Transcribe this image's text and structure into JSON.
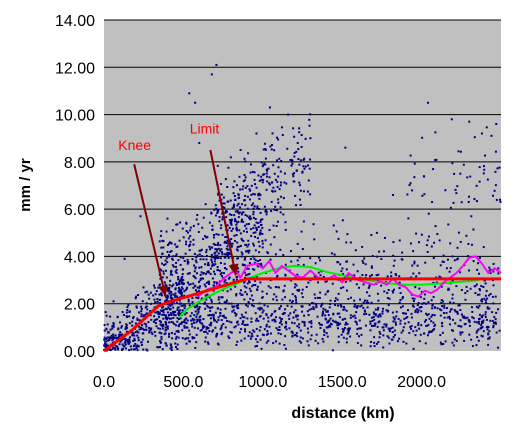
{
  "chart_data": {
    "type": "scatter",
    "title": "",
    "xlabel": "distance (km)",
    "ylabel": "mm / yr",
    "xlim": [
      0,
      2500
    ],
    "ylim": [
      0,
      14
    ],
    "xticks": [
      0,
      500,
      1000,
      1500,
      2000
    ],
    "xtick_labels": [
      "0.0",
      "500.0",
      "1000.0",
      "1500.0",
      "2000.0"
    ],
    "yticks": [
      0,
      2,
      4,
      6,
      8,
      10,
      12,
      14
    ],
    "ytick_labels": [
      "0.00",
      "2.00",
      "4.00",
      "6.00",
      "8.00",
      "10.00",
      "12.00",
      "14.00"
    ],
    "grid": "horizontal",
    "plot_background": "#c0c0c0",
    "series": [
      {
        "kind": "scatter",
        "color": "#000080",
        "clusters": [
          {
            "x_range": [
              0,
              500
            ],
            "y_trend": [
              0,
              2.2
            ],
            "spread": 1.8,
            "count": 420
          },
          {
            "x_range": [
              350,
              1000
            ],
            "y_trend": [
              2.0,
              4.5
            ],
            "spread": 3.5,
            "count": 700
          },
          {
            "x_range": [
              700,
              1300
            ],
            "y_trend": [
              5.5,
              8.0
            ],
            "spread": 2.5,
            "count": 260
          },
          {
            "x_range": [
              500,
              2500
            ],
            "y_trend": [
              1.2,
              1.2
            ],
            "spread": 1.2,
            "count": 650
          },
          {
            "x_range": [
              1000,
              2500
            ],
            "y_trend": [
              3.0,
              3.0
            ],
            "spread": 2.6,
            "count": 420
          },
          {
            "x_range": [
              1900,
              2500
            ],
            "y_trend": [
              7.0,
              7.0
            ],
            "spread": 2.5,
            "count": 60
          }
        ],
        "points": [
          [
            708,
            12.1
          ],
          [
            679,
            11.7
          ],
          [
            537,
            10.9
          ],
          [
            574,
            10.5
          ],
          [
            1045,
            10.3
          ],
          [
            2040,
            10.5
          ],
          [
            2300,
            9.7
          ],
          [
            2470,
            9.6
          ],
          [
            2380,
            9.2
          ],
          [
            1300,
            9.0
          ],
          [
            1220,
            8.8
          ],
          [
            600,
            8.8
          ],
          [
            860,
            8.5
          ],
          [
            960,
            9.2
          ],
          [
            1160,
            10.0
          ],
          [
            2190,
            9.8
          ],
          [
            2440,
            9.1
          ],
          [
            400,
            5.6
          ],
          [
            230,
            5.7
          ],
          [
            130,
            3.9
          ],
          [
            60,
            2.1
          ],
          [
            1520,
            8.6
          ],
          [
            1820,
            6.6
          ],
          [
            2150,
            6.8
          ]
        ]
      },
      {
        "kind": "line",
        "name": "",
        "color": "#ff0000",
        "points": [
          [
            0,
            0
          ],
          [
            180,
            0.9
          ],
          [
            340,
            1.9
          ],
          [
            420,
            2.1
          ],
          [
            600,
            2.45
          ],
          [
            800,
            2.85
          ],
          [
            900,
            3.05
          ],
          [
            2500,
            3.05
          ]
        ]
      },
      {
        "kind": "line",
        "name": "",
        "color": "#ff00ff",
        "points": [
          [
            590,
            2.3
          ],
          [
            650,
            2.6
          ],
          [
            700,
            2.7
          ],
          [
            760,
            3.1
          ],
          [
            800,
            3.3
          ],
          [
            830,
            3.4
          ],
          [
            860,
            3.1
          ],
          [
            900,
            3.6
          ],
          [
            960,
            3.7
          ],
          [
            1000,
            3.5
          ],
          [
            1040,
            3.8
          ],
          [
            1080,
            3.3
          ],
          [
            1120,
            3.6
          ],
          [
            1160,
            3.4
          ],
          [
            1200,
            3.2
          ],
          [
            1250,
            3.1
          ],
          [
            1300,
            3.4
          ],
          [
            1350,
            3.1
          ],
          [
            1400,
            3.0
          ],
          [
            1450,
            3.2
          ],
          [
            1500,
            2.9
          ],
          [
            1540,
            3.3
          ],
          [
            1600,
            3.0
          ],
          [
            1650,
            2.9
          ],
          [
            1700,
            2.8
          ],
          [
            1740,
            2.95
          ],
          [
            1780,
            2.8
          ],
          [
            1820,
            3.05
          ],
          [
            1860,
            2.8
          ],
          [
            1900,
            2.7
          ],
          [
            1940,
            2.4
          ],
          [
            1980,
            2.3
          ],
          [
            2020,
            2.55
          ],
          [
            2060,
            2.45
          ],
          [
            2100,
            2.6
          ],
          [
            2140,
            2.9
          ],
          [
            2180,
            3.1
          ],
          [
            2220,
            3.3
          ],
          [
            2260,
            3.6
          ],
          [
            2300,
            3.95
          ],
          [
            2340,
            4.0
          ],
          [
            2380,
            3.7
          ],
          [
            2420,
            3.3
          ],
          [
            2460,
            3.5
          ],
          [
            2500,
            3.3
          ]
        ]
      },
      {
        "kind": "line",
        "name": "",
        "color": "#00ee00",
        "points": [
          [
            470,
            1.4
          ],
          [
            520,
            1.75
          ],
          [
            580,
            2.0
          ],
          [
            640,
            2.25
          ],
          [
            700,
            2.45
          ],
          [
            760,
            2.65
          ],
          [
            820,
            2.8
          ],
          [
            900,
            3.05
          ],
          [
            1000,
            3.3
          ],
          [
            1100,
            3.5
          ],
          [
            1200,
            3.6
          ],
          [
            1300,
            3.55
          ],
          [
            1400,
            3.35
          ],
          [
            1500,
            3.2
          ],
          [
            1600,
            3.05
          ],
          [
            1700,
            2.95
          ],
          [
            1800,
            2.85
          ],
          [
            1900,
            2.8
          ],
          [
            2000,
            2.8
          ],
          [
            2100,
            2.85
          ],
          [
            2200,
            2.9
          ],
          [
            2300,
            2.95
          ],
          [
            2360,
            3.0
          ]
        ]
      }
    ],
    "annotations": [
      {
        "text": "Knee",
        "color": "#ff0000",
        "label_at": [
          90,
          8.5
        ],
        "arrow_from": [
          190,
          7.9
        ],
        "arrow_to": [
          388,
          2.3
        ]
      },
      {
        "text": "Limit",
        "color": "#ff0000",
        "label_at": [
          540,
          9.2
        ],
        "arrow_from": [
          670,
          8.5
        ],
        "arrow_to": [
          830,
          3.2
        ]
      }
    ]
  }
}
